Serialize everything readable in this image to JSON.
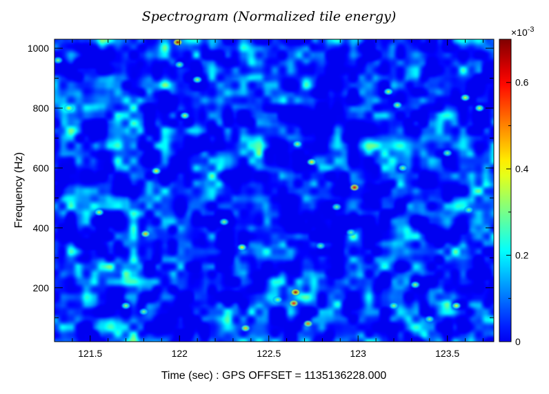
{
  "chart_data": {
    "type": "heatmap",
    "title": "Spectrogram (Normalized tile energy)",
    "xlabel": "Time (sec) : GPS OFFSET = 1135136228.000",
    "ylabel": "Frequency (Hz)",
    "xlim": [
      121.3,
      123.76
    ],
    "ylim": [
      20,
      1030
    ],
    "x_ticks": [
      121.5,
      122,
      122.5,
      123,
      123.5
    ],
    "x_tick_labels": [
      "121.5",
      "122",
      "122.5",
      "123",
      "123.5"
    ],
    "y_ticks": [
      200,
      400,
      600,
      800,
      1000
    ],
    "y_tick_labels": [
      "200",
      "400",
      "600",
      "800",
      "1000"
    ],
    "colorbar": {
      "multiplier_label": "×10",
      "multiplier_exponent": "-3",
      "range": [
        0,
        0.7
      ],
      "ticks": [
        0,
        0.2,
        0.4,
        0.6
      ],
      "tick_labels": [
        "0",
        "0.2",
        "0.4",
        "0.6"
      ],
      "colormap": [
        "#00008f",
        "#0000ff",
        "#00ffff",
        "#ffff00",
        "#ff0000",
        "#800000"
      ]
    },
    "hotspots": [
      {
        "x": 121.99,
        "y": 1020,
        "v": 0.68
      },
      {
        "x": 122.98,
        "y": 535,
        "v": 0.62
      },
      {
        "x": 122.65,
        "y": 185,
        "v": 0.66
      },
      {
        "x": 122.64,
        "y": 148,
        "v": 0.58
      },
      {
        "x": 122.72,
        "y": 80,
        "v": 0.5
      },
      {
        "x": 122.37,
        "y": 65,
        "v": 0.45
      },
      {
        "x": 121.81,
        "y": 380,
        "v": 0.45
      },
      {
        "x": 121.87,
        "y": 590,
        "v": 0.4
      },
      {
        "x": 122.74,
        "y": 620,
        "v": 0.42
      },
      {
        "x": 121.38,
        "y": 800,
        "v": 0.38
      },
      {
        "x": 123.6,
        "y": 835,
        "v": 0.38
      },
      {
        "x": 123.68,
        "y": 800,
        "v": 0.36
      },
      {
        "x": 123.17,
        "y": 855,
        "v": 0.36
      },
      {
        "x": 123.22,
        "y": 810,
        "v": 0.34
      },
      {
        "x": 121.55,
        "y": 452,
        "v": 0.36
      },
      {
        "x": 122.35,
        "y": 335,
        "v": 0.4
      },
      {
        "x": 123.55,
        "y": 140,
        "v": 0.4
      },
      {
        "x": 122.03,
        "y": 775,
        "v": 0.36
      },
      {
        "x": 122.1,
        "y": 895,
        "v": 0.34
      },
      {
        "x": 122.66,
        "y": 680,
        "v": 0.34
      },
      {
        "x": 122.25,
        "y": 420,
        "v": 0.32
      },
      {
        "x": 123.32,
        "y": 210,
        "v": 0.34
      },
      {
        "x": 123.2,
        "y": 140,
        "v": 0.32
      },
      {
        "x": 121.7,
        "y": 140,
        "v": 0.34
      },
      {
        "x": 121.8,
        "y": 120,
        "v": 0.3
      },
      {
        "x": 123.62,
        "y": 460,
        "v": 0.3
      },
      {
        "x": 123.4,
        "y": 95,
        "v": 0.3
      },
      {
        "x": 122.55,
        "y": 160,
        "v": 0.32
      },
      {
        "x": 121.32,
        "y": 960,
        "v": 0.3
      },
      {
        "x": 122.88,
        "y": 470,
        "v": 0.3
      },
      {
        "x": 122.0,
        "y": 945,
        "v": 0.3
      },
      {
        "x": 123.5,
        "y": 650,
        "v": 0.3
      },
      {
        "x": 123.25,
        "y": 600,
        "v": 0.32
      },
      {
        "x": 122.96,
        "y": 385,
        "v": 0.28
      },
      {
        "x": 122.79,
        "y": 340,
        "v": 0.28
      }
    ]
  }
}
